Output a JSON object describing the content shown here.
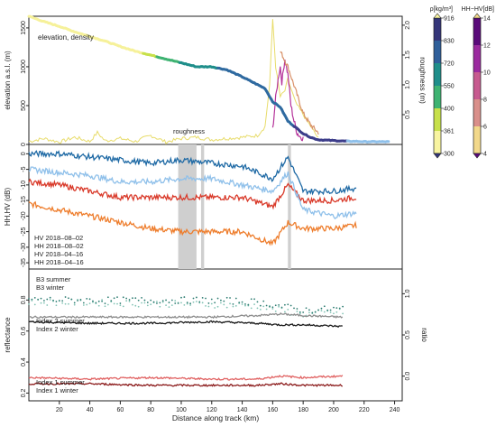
{
  "chart_data": [
    {
      "type": "line",
      "ylabel": "elevation a.s.l. (m)",
      "y2label": "roughness (m)",
      "annotation": "elevation, density",
      "roughness_label": "roughness",
      "ylim": [
        0,
        1650
      ],
      "y2lim": [
        0,
        2.15
      ],
      "yticks": [
        "0",
        "500",
        "1000",
        "1500"
      ],
      "y2ticks": [
        "0.5",
        "1.0",
        "1.5",
        "2.0"
      ],
      "series": [
        {
          "name": "elevation",
          "x": [
            0,
            10,
            20,
            30,
            40,
            50,
            60,
            70,
            80,
            90,
            100,
            110,
            120,
            130,
            140,
            150,
            155,
            160,
            165,
            170,
            175,
            180,
            185,
            190,
            200,
            210,
            215,
            220,
            230,
            236
          ],
          "values": [
            1650,
            1580,
            1520,
            1450,
            1390,
            1330,
            1260,
            1200,
            1150,
            1100,
            1050,
            1000,
            1000,
            960,
            870,
            770,
            720,
            550,
            480,
            300,
            220,
            140,
            90,
            60,
            50,
            40,
            40,
            35,
            35,
            35
          ]
        },
        {
          "name": "roughness",
          "x": [
            0,
            10,
            20,
            30,
            40,
            45,
            50,
            60,
            70,
            80,
            90,
            100,
            110,
            120,
            130,
            140,
            150,
            155,
            158,
            160,
            162,
            165,
            168,
            170,
            175,
            180,
            185,
            190
          ],
          "values": [
            0.05,
            0.1,
            0.04,
            0.12,
            0.05,
            0.2,
            0.06,
            0.1,
            0.05,
            0.15,
            0.04,
            0.1,
            0.12,
            0.08,
            0.1,
            0.12,
            0.15,
            0.3,
            1.0,
            2.1,
            1.3,
            0.8,
            0.9,
            1.1,
            0.7,
            0.5,
            0.3,
            0.1
          ]
        },
        {
          "name": "HH-HV",
          "x": [
            160,
            162,
            164,
            165,
            166,
            168,
            170,
            172,
            174,
            176,
            178,
            180
          ],
          "values": [
            200,
            600,
            900,
            1000,
            800,
            1100,
            900,
            500,
            300,
            150,
            100,
            80
          ]
        }
      ]
    },
    {
      "type": "line",
      "ylabel": "HH,HV (dB)",
      "ylim": [
        -37,
        3
      ],
      "yticks": [
        "0",
        "-5",
        "-10",
        "-15",
        "-20",
        "-25",
        "-30",
        "-35"
      ],
      "series": [
        {
          "name": "HV 2018–08–02",
          "x": [
            0,
            20,
            40,
            60,
            80,
            100,
            120,
            140,
            160,
            170,
            180,
            200,
            215
          ],
          "values": [
            -16,
            -18,
            -20,
            -22,
            -24,
            -25,
            -25,
            -25,
            -29,
            -22,
            -24,
            -24,
            -23
          ]
        },
        {
          "name": "HH 2018–08–02",
          "x": [
            0,
            20,
            40,
            60,
            80,
            100,
            120,
            140,
            160,
            170,
            180,
            200,
            215
          ],
          "values": [
            -9,
            -10,
            -12,
            -14,
            -14,
            -14,
            -14,
            -14,
            -17,
            -10,
            -15,
            -15,
            -14
          ]
        },
        {
          "name": "HV 2018–04–16",
          "x": [
            0,
            20,
            40,
            60,
            80,
            100,
            120,
            140,
            160,
            170,
            180,
            200,
            215
          ],
          "values": [
            -5,
            -6,
            -7,
            -9,
            -9,
            -8,
            -8,
            -10,
            -12,
            -6,
            -18,
            -20,
            -19
          ]
        },
        {
          "name": "HH 2018–04–16",
          "x": [
            0,
            20,
            40,
            60,
            80,
            100,
            120,
            140,
            160,
            170,
            180,
            200,
            215
          ],
          "values": [
            0,
            0,
            -1,
            -2,
            -3,
            -2,
            -3,
            -4,
            -8,
            -1,
            -12,
            -12,
            -11
          ]
        }
      ]
    },
    {
      "type": "line",
      "ylabel": "reflectance",
      "y2label": "ratio",
      "ylim": [
        0.15,
        1.0
      ],
      "y2lim": [
        -0.3,
        1.3
      ],
      "yticks": [
        "0.2",
        "0.4",
        "0.6",
        "0.8"
      ],
      "y2ticks": [
        "0.0",
        "0.5",
        "1.0"
      ],
      "xlabel": "Distance along track (km)",
      "xticks": [
        "20",
        "40",
        "60",
        "80",
        "100",
        "120",
        "140",
        "160",
        "180",
        "200",
        "220",
        "240"
      ],
      "xlim": [
        0,
        245
      ],
      "series": [
        {
          "name": "B3 summer",
          "x": [
            0,
            40,
            80,
            120,
            150,
            165,
            180,
            206
          ],
          "values": [
            0.9,
            0.89,
            0.88,
            0.87,
            0.85,
            0.8,
            0.75,
            0.78
          ]
        },
        {
          "name": "B3 winter",
          "x": [
            0,
            40,
            80,
            120,
            150,
            165,
            180,
            206
          ],
          "values": [
            0.93,
            0.92,
            0.92,
            0.92,
            0.9,
            0.85,
            0.8,
            0.82
          ]
        },
        {
          "name": "Index 2 summer",
          "x": [
            0,
            40,
            80,
            120,
            150,
            165,
            180,
            206
          ],
          "values": [
            0.69,
            0.69,
            0.69,
            0.69,
            0.7,
            0.71,
            0.7,
            0.69
          ]
        },
        {
          "name": "Index 2 winter",
          "x": [
            0,
            40,
            80,
            120,
            150,
            165,
            180,
            206
          ],
          "values": [
            0.66,
            0.65,
            0.65,
            0.66,
            0.65,
            0.64,
            0.64,
            0.63
          ]
        },
        {
          "name": "Index 1 summer",
          "x": [
            0,
            40,
            80,
            120,
            150,
            165,
            180,
            206
          ],
          "values": [
            0.3,
            0.29,
            0.3,
            0.29,
            0.29,
            0.31,
            0.3,
            0.31
          ]
        },
        {
          "name": "Index 1 winter",
          "x": [
            0,
            40,
            80,
            120,
            150,
            165,
            180,
            206
          ],
          "values": [
            0.26,
            0.26,
            0.25,
            0.25,
            0.25,
            0.26,
            0.25,
            0.25
          ]
        }
      ]
    }
  ],
  "colorbars": {
    "density": {
      "label": "ρ[kg/m³]",
      "ticks": [
        "916",
        "830",
        "720",
        "550",
        "400",
        "361",
        "300"
      ],
      "colors": [
        "#f8f4a0",
        "#c7e04a",
        "#3fb372",
        "#1f8e8a",
        "#2f5f9a",
        "#35367a"
      ]
    },
    "hhhv": {
      "label": "HH−HV[dB]",
      "ticks": [
        "14",
        "12",
        "10",
        "8",
        "6",
        "4"
      ],
      "colors": [
        "#f2d88a",
        "#d98f8a",
        "#c75a8f",
        "#9b2a9f",
        "#5a0a7a"
      ]
    }
  },
  "gray_bands_km": [
    [
      98,
      110
    ],
    [
      113,
      115
    ],
    [
      170,
      172
    ]
  ],
  "colors": {
    "hv_aug": "#ee7d2c",
    "hh_aug": "#d93a2a",
    "hv_apr": "#8fc0ea",
    "hh_apr": "#1f6aa5",
    "b3_summer": "#83c4b5",
    "b3_winter": "#2e7d72",
    "i2_summer": "#8c8c8c",
    "i2_winter": "#1a1a1a",
    "i1_summer": "#e06060",
    "i1_winter": "#8b1a1a",
    "elev_low": "#3c3d8a",
    "elev_mid": "#2f6aa0",
    "elev_high": "#f6f19a"
  }
}
